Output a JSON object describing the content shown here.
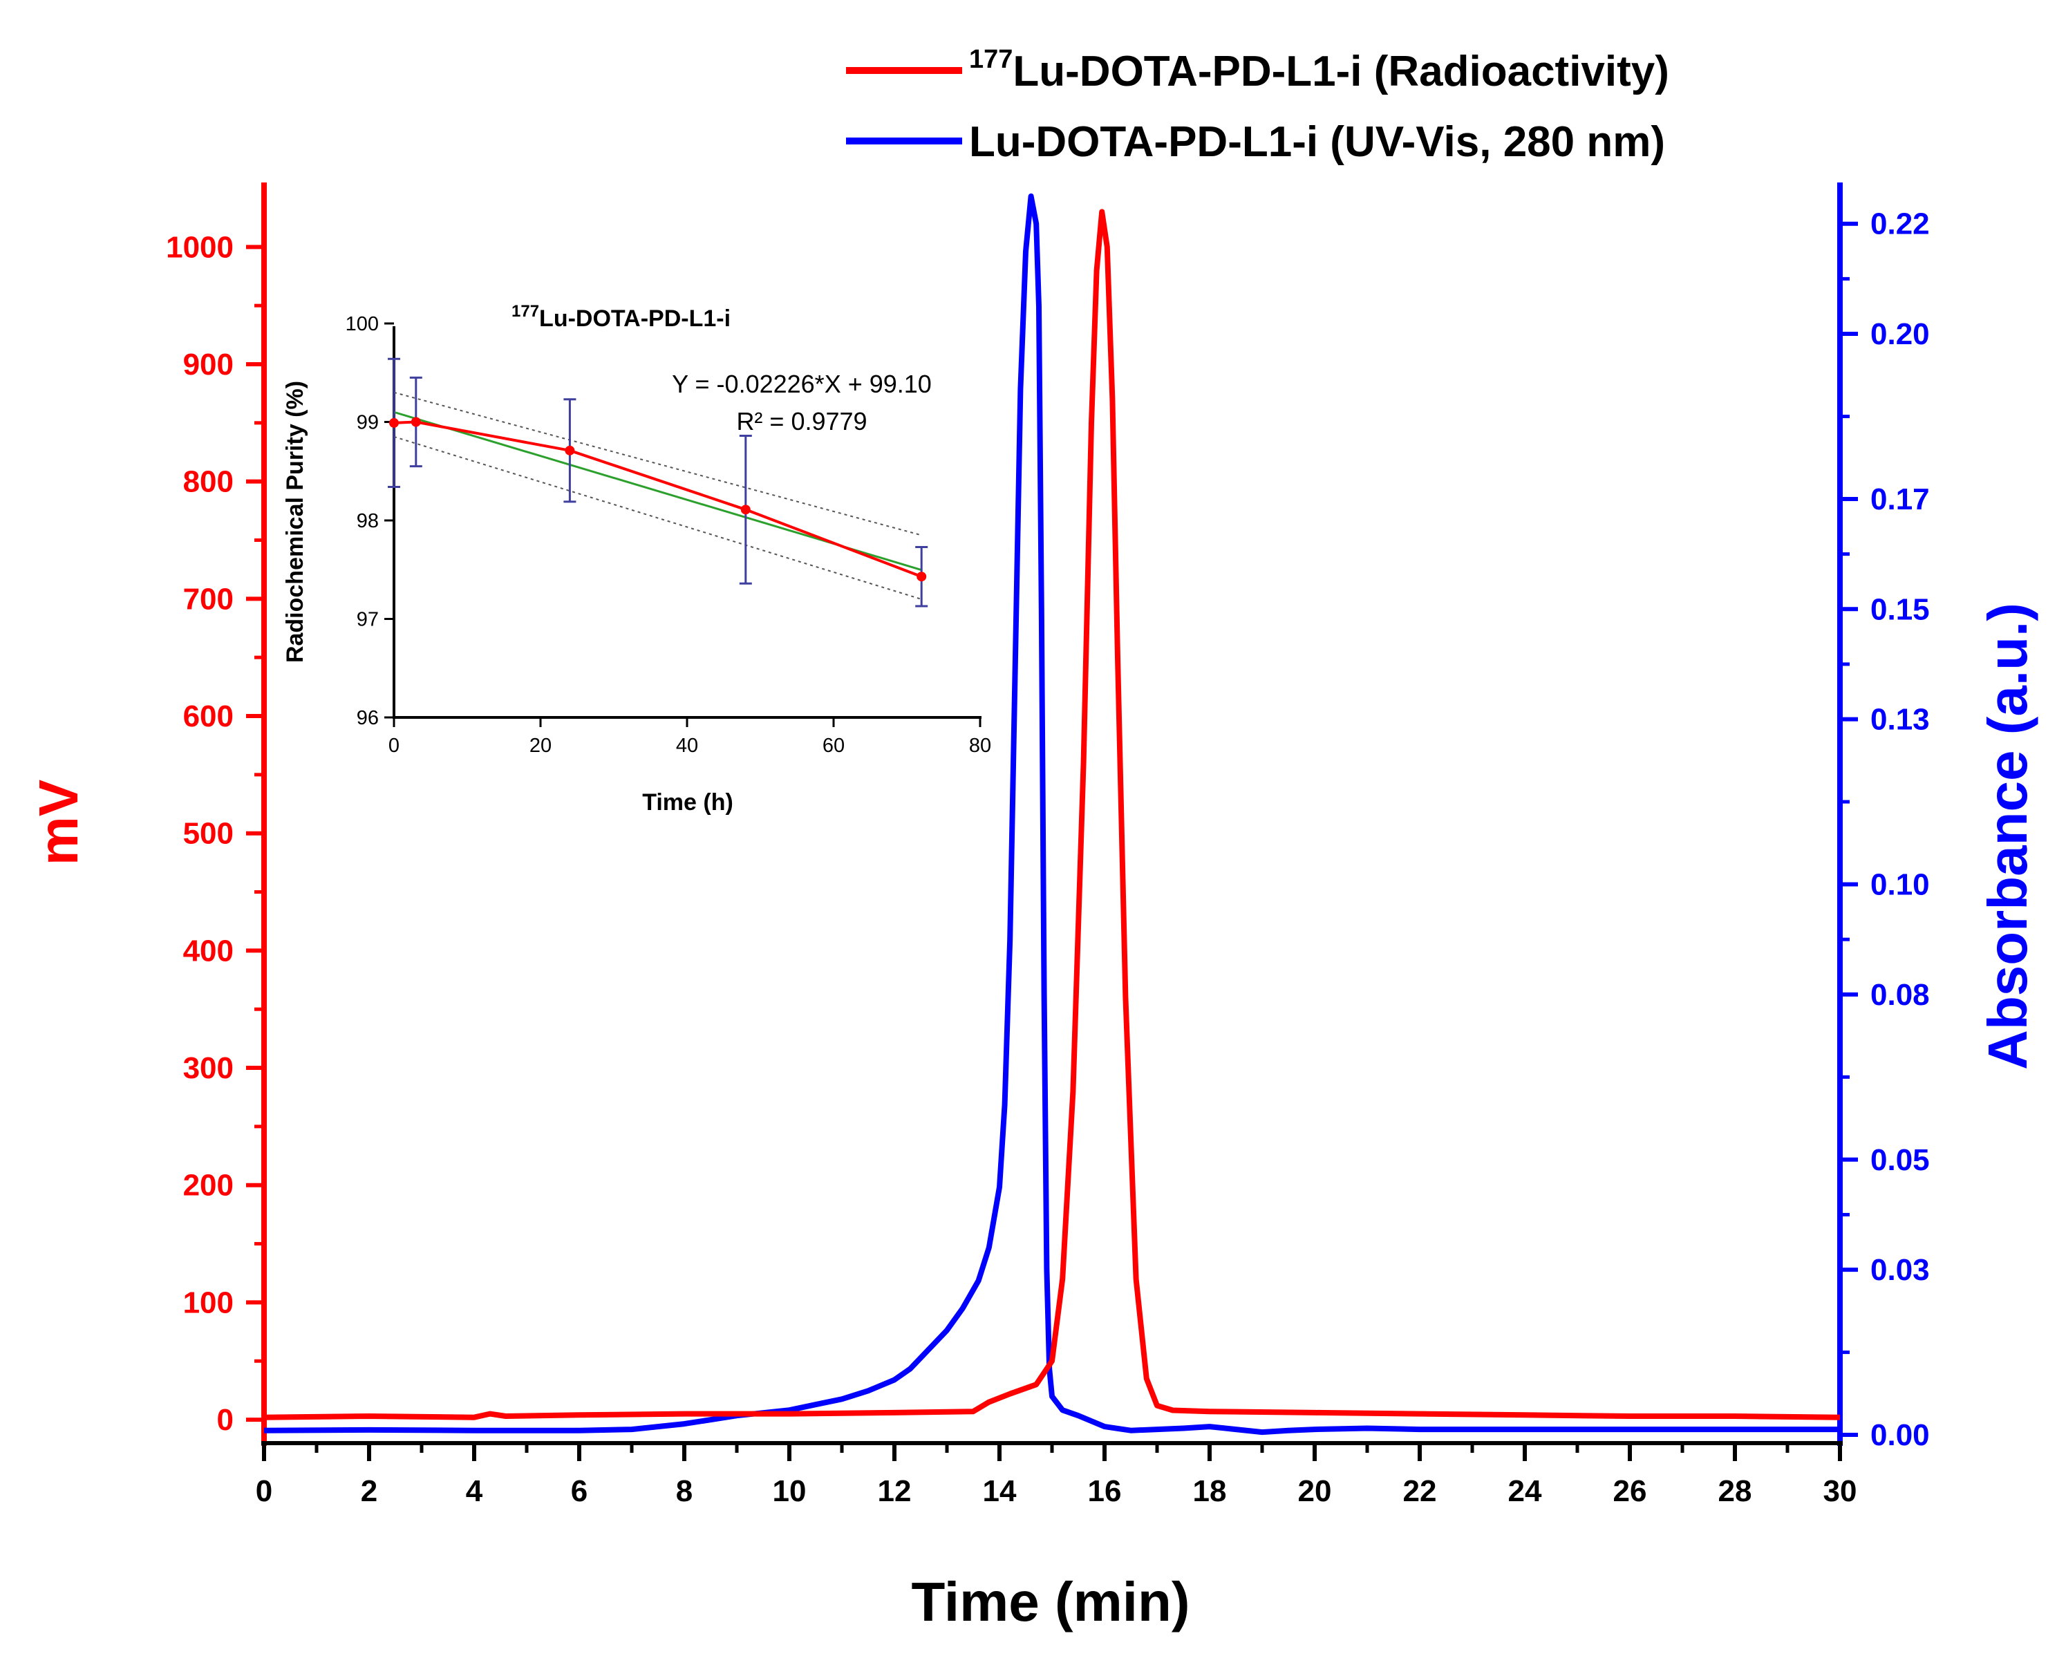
{
  "chart_data": [
    {
      "type": "line",
      "id": "main",
      "xlabel": "Time (min)",
      "ylabel": "mV",
      "y2label": "Absorbance (a.u.)",
      "xlim": [
        0,
        30
      ],
      "ylim": [
        -20,
        1055
      ],
      "y2lim": [
        -0.0015,
        0.2275
      ],
      "xticks": [
        0,
        2,
        4,
        6,
        8,
        10,
        12,
        14,
        16,
        18,
        20,
        22,
        24,
        26,
        28,
        30
      ],
      "yticks": [
        0,
        100,
        200,
        300,
        400,
        500,
        600,
        700,
        800,
        900,
        1000
      ],
      "y2ticks": [
        0.0,
        0.03,
        0.05,
        0.08,
        0.1,
        0.13,
        0.15,
        0.17,
        0.2,
        0.22
      ],
      "y2tick_labels": [
        "0.00",
        "0.03",
        "0.05",
        "0.08",
        "0.10",
        "0.13",
        "0.15",
        "0.17",
        "0.20",
        "0.22"
      ],
      "legend_position": "top-right",
      "series": [
        {
          "name": "Lu-DOTA-PD-L1-i (Radioactivity)",
          "name_sup": "177",
          "name_main": "Lu-DOTA-PD-L1-i (Radioactivity)",
          "axis": "left",
          "color": "#ff0000",
          "x": [
            0,
            2,
            4,
            4.3,
            4.6,
            6,
            8,
            10,
            12,
            13.5,
            13.8,
            14.2,
            14.7,
            15.0,
            15.2,
            15.4,
            15.6,
            15.75,
            15.85,
            15.95,
            16.05,
            16.15,
            16.25,
            16.4,
            16.6,
            16.8,
            17.0,
            17.3,
            18,
            20,
            22,
            24,
            26,
            28,
            30
          ],
          "y": [
            2,
            3,
            2,
            5,
            3,
            4,
            5,
            5,
            6,
            7,
            15,
            22,
            30,
            50,
            120,
            280,
            560,
            850,
            980,
            1030,
            1000,
            870,
            650,
            360,
            120,
            35,
            12,
            8,
            7,
            6,
            5,
            4,
            3,
            3,
            2
          ]
        },
        {
          "name": "Lu-DOTA-PD-L1-i (UV-Vis, 280 nm)",
          "axis": "right",
          "color": "#0000ff",
          "x": [
            0,
            2,
            4,
            6,
            7,
            8,
            9,
            10,
            10.5,
            11,
            11.5,
            12,
            12.3,
            12.6,
            13,
            13.3,
            13.6,
            13.8,
            14.0,
            14.1,
            14.2,
            14.3,
            14.4,
            14.5,
            14.6,
            14.7,
            14.75,
            14.8,
            14.85,
            14.9,
            14.95,
            15.0,
            15.2,
            15.5,
            16,
            16.5,
            17,
            17.5,
            18,
            18.5,
            19,
            19.5,
            20,
            21,
            22,
            24,
            26,
            28,
            30
          ],
          "y": [
            0.0008,
            0.0009,
            0.0008,
            0.0008,
            0.001,
            0.002,
            0.0035,
            0.0045,
            0.0055,
            0.0065,
            0.008,
            0.01,
            0.012,
            0.015,
            0.019,
            0.023,
            0.028,
            0.034,
            0.045,
            0.06,
            0.09,
            0.14,
            0.19,
            0.215,
            0.225,
            0.22,
            0.205,
            0.15,
            0.08,
            0.03,
            0.012,
            0.007,
            0.0045,
            0.0035,
            0.0015,
            0.0008,
            0.001,
            0.0012,
            0.0015,
            0.001,
            0.0005,
            0.0008,
            0.001,
            0.0012,
            0.001,
            0.001,
            0.001,
            0.001,
            0.001
          ]
        }
      ]
    },
    {
      "type": "scatter",
      "id": "inset",
      "title_sup": "177",
      "title_main": "Lu-DOTA-PD-L1-i",
      "xlabel": "Time (h)",
      "ylabel": "Radiochemical Purity (%)",
      "xlim": [
        0,
        80
      ],
      "ylim": [
        96,
        100
      ],
      "xticks": [
        0,
        20,
        40,
        60,
        80
      ],
      "yticks": [
        96,
        97,
        98,
        99,
        100
      ],
      "x": [
        0,
        3,
        24,
        48,
        72
      ],
      "y": [
        98.99,
        99.0,
        98.71,
        98.11,
        97.43
      ],
      "error": [
        0.65,
        0.45,
        0.52,
        0.75,
        0.3
      ],
      "series_color": "#ff0000",
      "error_color": "#3f3f9f",
      "fit": {
        "equation": "Y = -0.02226*X + 99.10",
        "r2": "R² = 0.9779",
        "slope": -0.02226,
        "intercept": 99.1,
        "color": "#2ca02c",
        "ci_upper": [
          99.3,
          97.85
        ],
        "ci_lower": [
          98.85,
          97.2
        ]
      }
    }
  ]
}
